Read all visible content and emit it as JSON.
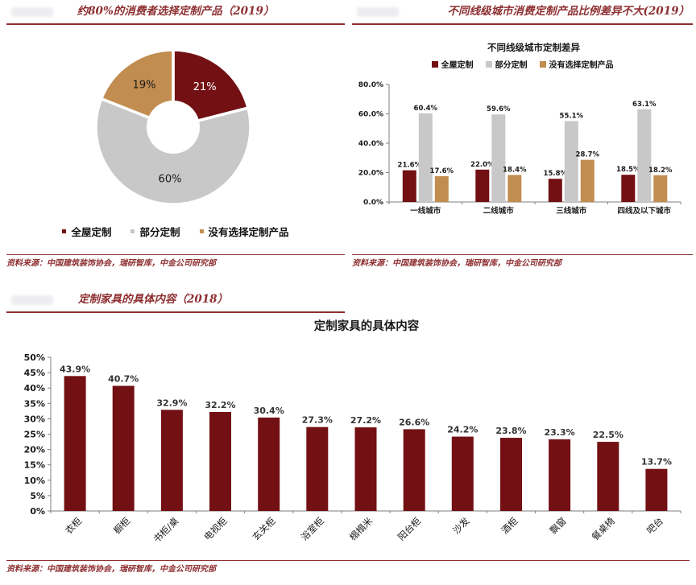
{
  "colors": {
    "maroon": "#731013",
    "gray": "#c8c8c8",
    "gold": "#c28d50",
    "title_red": "#8e2f31",
    "axis_gray": "#7f7f7f",
    "text_black": "#1a1a1a",
    "value_label": "#333333"
  },
  "chart_data": [
    {
      "type": "pie",
      "section_title": "约80%的消费者选择定制产品（2019）",
      "slices": [
        {
          "label": "全屋定制",
          "value": 21,
          "display": "21%",
          "color_key": "maroon",
          "label_color": "#ffffff"
        },
        {
          "label": "部分定制",
          "value": 60,
          "display": "60%",
          "color_key": "gray",
          "label_color": "#1a1a1a"
        },
        {
          "label": "没有选择定制产品",
          "value": 19,
          "display": "19%",
          "color_key": "gold",
          "label_color": "#1a1a1a"
        }
      ],
      "legend_position": "bottom",
      "source": "资料来源：中国建筑装饰协会，瑞研智库，中金公司研究部"
    },
    {
      "type": "bar",
      "section_title": "不同线级城市消费定制产品比例差异不大(2019）",
      "chart_title": "不同线级城市定制差异",
      "categories": [
        "一线城市",
        "二线城市",
        "三线城市",
        "四线及以下城市"
      ],
      "series": [
        {
          "name": "全屋定制",
          "color_key": "maroon",
          "values": [
            21.6,
            22.0,
            15.8,
            18.5
          ],
          "labels": [
            "21.6%",
            "22.0%",
            "15.8%",
            "18.5%"
          ]
        },
        {
          "name": "部分定制",
          "color_key": "gray",
          "values": [
            60.4,
            59.6,
            55.1,
            63.1
          ],
          "labels": [
            "60.4%",
            "59.6%",
            "55.1%",
            "63.1%"
          ]
        },
        {
          "name": "没有选择定制产品",
          "color_key": "gold",
          "values": [
            17.6,
            18.4,
            28.7,
            18.2
          ],
          "labels": [
            "17.6%",
            "18.4%",
            "28.7%",
            "18.2%"
          ]
        }
      ],
      "ylim": [
        0,
        80
      ],
      "y_ticks": [
        "0.0%",
        "20.0%",
        "40.0%",
        "60.0%",
        "80.0%"
      ],
      "grid": false,
      "legend_position": "top",
      "source": "资料来源：中国建筑装饰协会，瑞研智库，中金公司研究部"
    },
    {
      "type": "bar",
      "section_title": "定制家具的具体内容（2018）",
      "chart_title": "定制家具的具体内容",
      "categories": [
        "衣柜",
        "橱柜",
        "书柜/桌",
        "电视柜",
        "玄关柜",
        "浴室柜",
        "榻榻米",
        "阳台柜",
        "沙发",
        "酒柜",
        "飘窗",
        "餐桌椅",
        "吧台"
      ],
      "values": [
        43.9,
        40.7,
        32.9,
        32.2,
        30.4,
        27.3,
        27.2,
        26.6,
        24.2,
        23.8,
        23.3,
        22.5,
        13.7
      ],
      "labels": [
        "43.9%",
        "40.7%",
        "32.9%",
        "32.2%",
        "30.4%",
        "27.3%",
        "27.2%",
        "26.6%",
        "24.2%",
        "23.8%",
        "23.3%",
        "22.5%",
        "13.7%"
      ],
      "bar_color_key": "maroon",
      "ylim": [
        0,
        50
      ],
      "y_ticks": [
        "0%",
        "5%",
        "10%",
        "15%",
        "20%",
        "25%",
        "30%",
        "35%",
        "40%",
        "45%",
        "50%"
      ],
      "grid": false,
      "source": "资料来源：中国建筑装饰协会，瑞研智库，中金公司研究部"
    }
  ]
}
